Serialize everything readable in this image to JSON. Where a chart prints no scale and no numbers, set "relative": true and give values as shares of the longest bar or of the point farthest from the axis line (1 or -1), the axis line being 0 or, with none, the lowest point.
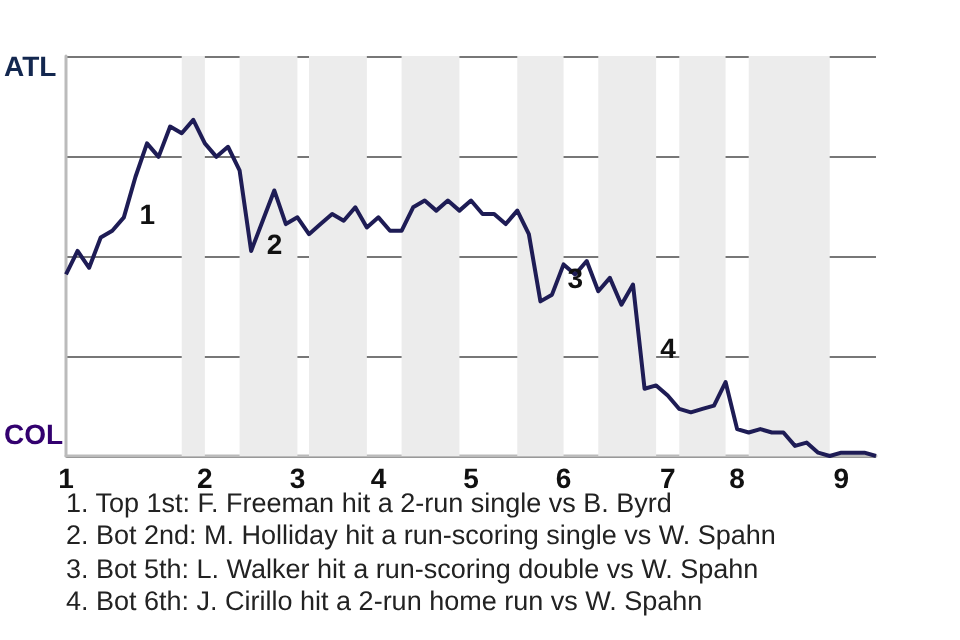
{
  "chart_data": {
    "type": "line",
    "relative": true,
    "categories": [
      "1",
      null,
      null,
      null,
      null,
      null,
      null,
      null,
      null,
      null,
      null,
      null,
      "2",
      null,
      null,
      null,
      null,
      null,
      null,
      null,
      "3",
      null,
      null,
      null,
      null,
      null,
      null,
      "4",
      null,
      null,
      null,
      null,
      null,
      null,
      null,
      "5",
      null,
      null,
      null,
      null,
      null,
      null,
      null,
      "6",
      null,
      null,
      null,
      null,
      null,
      null,
      null,
      null,
      "7",
      null,
      null,
      null,
      null,
      null,
      "8",
      null,
      null,
      null,
      null,
      null,
      null,
      null,
      null,
      "9",
      null,
      null,
      null
    ],
    "values": [
      0.54,
      0.61,
      0.56,
      0.65,
      0.67,
      0.71,
      0.83,
      0.93,
      0.89,
      0.98,
      0.96,
      1,
      0.93,
      0.89,
      0.92,
      0.85,
      0.61,
      0.7,
      0.79,
      0.69,
      0.71,
      0.66,
      0.69,
      0.72,
      0.7,
      0.74,
      0.68,
      0.71,
      0.67,
      0.67,
      0.74,
      0.76,
      0.73,
      0.76,
      0.73,
      0.76,
      0.72,
      0.72,
      0.69,
      0.73,
      0.66,
      0.46,
      0.48,
      0.57,
      0.54,
      0.58,
      0.49,
      0.53,
      0.45,
      0.51,
      0.2,
      0.21,
      0.18,
      0.14,
      0.13,
      0.14,
      0.15,
      0.22,
      0.08,
      0.07,
      0.08,
      0.07,
      0.07,
      0.03,
      0.04,
      0.01,
      0,
      0.01,
      0.01,
      0.01,
      0
    ],
    "color": "#1e1c55",
    "grid": "y",
    "marker": "none",
    "annotations": [
      "ATL",
      "COL",
      "1",
      "2",
      "3",
      "4",
      "1. Top 1st: F. Freeman hit a 2-run single vs B. Byrd",
      "2. Bot 2nd: M. Holliday hit a run-scoring single vs W. Spahn",
      "3. Bot 5th: L. Walker hit a run-scoring double vs W. Spahn",
      "4. Bot 6th: J. Cirillo hit a 2-run home run vs W. Spahn"
    ]
  }
}
